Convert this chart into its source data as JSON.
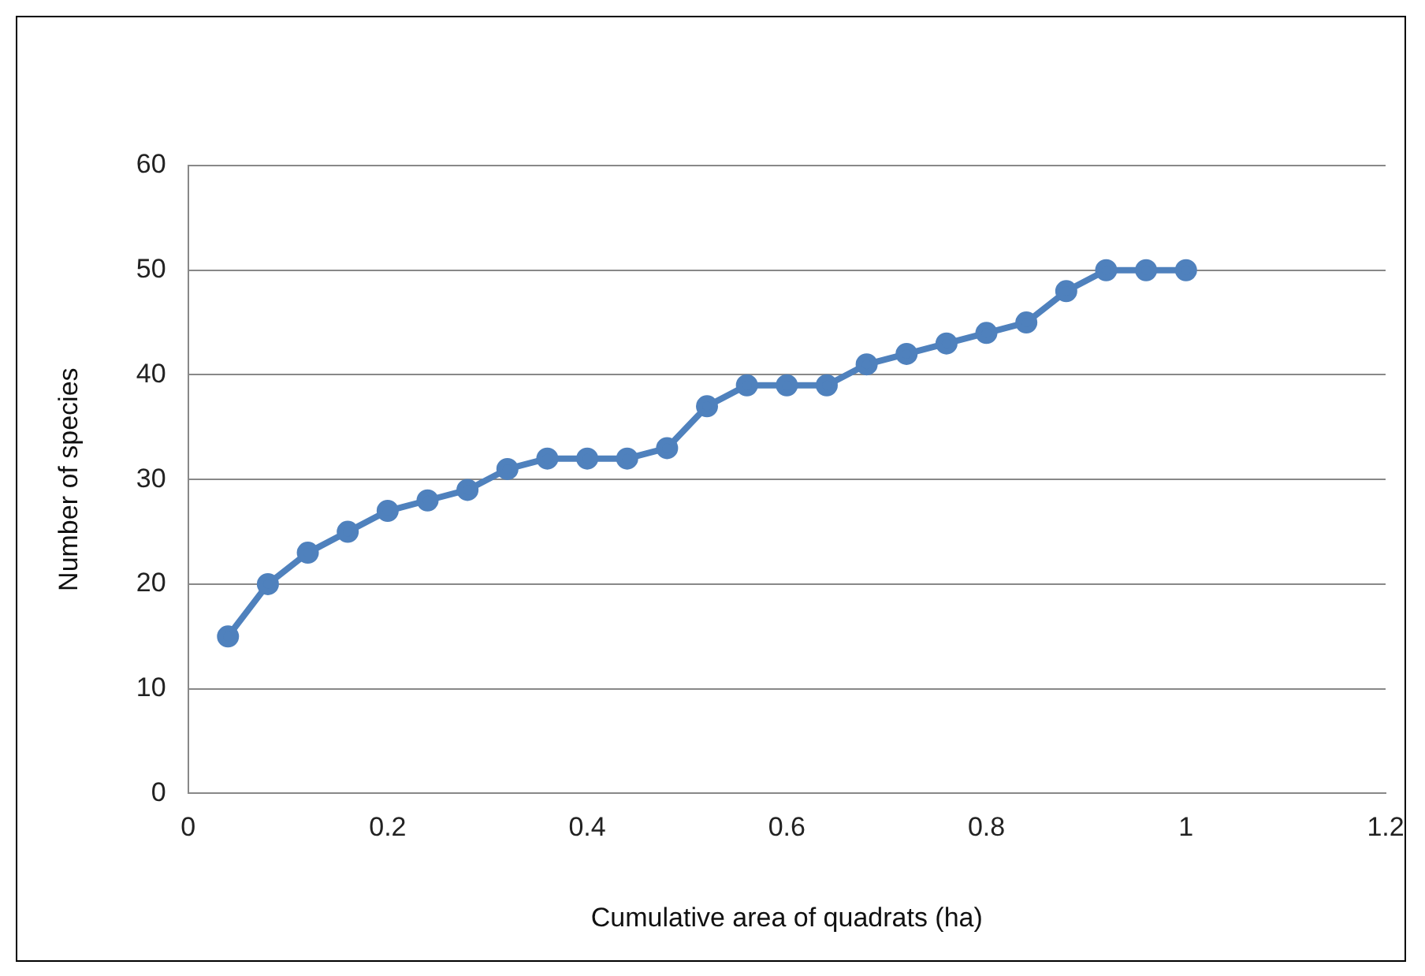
{
  "chart_data": {
    "type": "line",
    "xlabel": "Cumulative area of quadrats (ha)",
    "ylabel": "Number of species",
    "x": [
      0.04,
      0.08,
      0.12,
      0.16,
      0.2,
      0.24,
      0.28,
      0.32,
      0.36,
      0.4,
      0.44,
      0.48,
      0.52,
      0.56,
      0.6,
      0.64,
      0.68,
      0.72,
      0.76,
      0.8,
      0.84,
      0.88,
      0.92,
      0.96,
      1
    ],
    "series": [
      {
        "color": "#4f81bd",
        "values": [
          15,
          20,
          23,
          25,
          27,
          28,
          29,
          31,
          32,
          32,
          32,
          33,
          37,
          39,
          39,
          39,
          41,
          42,
          43,
          44,
          45,
          48,
          50,
          50,
          50
        ]
      }
    ],
    "xlim": [
      0,
      1.2
    ],
    "xticks": [
      0,
      0.2,
      0.4,
      0.6,
      0.8,
      1,
      1.2
    ],
    "ylim": [
      0,
      60
    ],
    "yticks": [
      0,
      10,
      20,
      30,
      40,
      50,
      60
    ],
    "grid": "y",
    "legend": false,
    "marker": "circle",
    "line_style": "solid"
  }
}
